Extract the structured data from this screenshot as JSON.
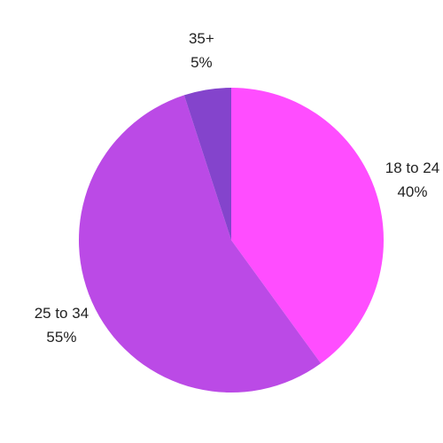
{
  "chart_data": {
    "type": "pie",
    "categories": [
      "18 to 24",
      "25 to 34",
      "35+"
    ],
    "values": [
      40,
      55,
      5
    ],
    "value_labels": [
      "40%",
      "55%",
      "5%"
    ],
    "colors": [
      "#ff4dff",
      "#bb4ae6",
      "#8444cc"
    ]
  }
}
